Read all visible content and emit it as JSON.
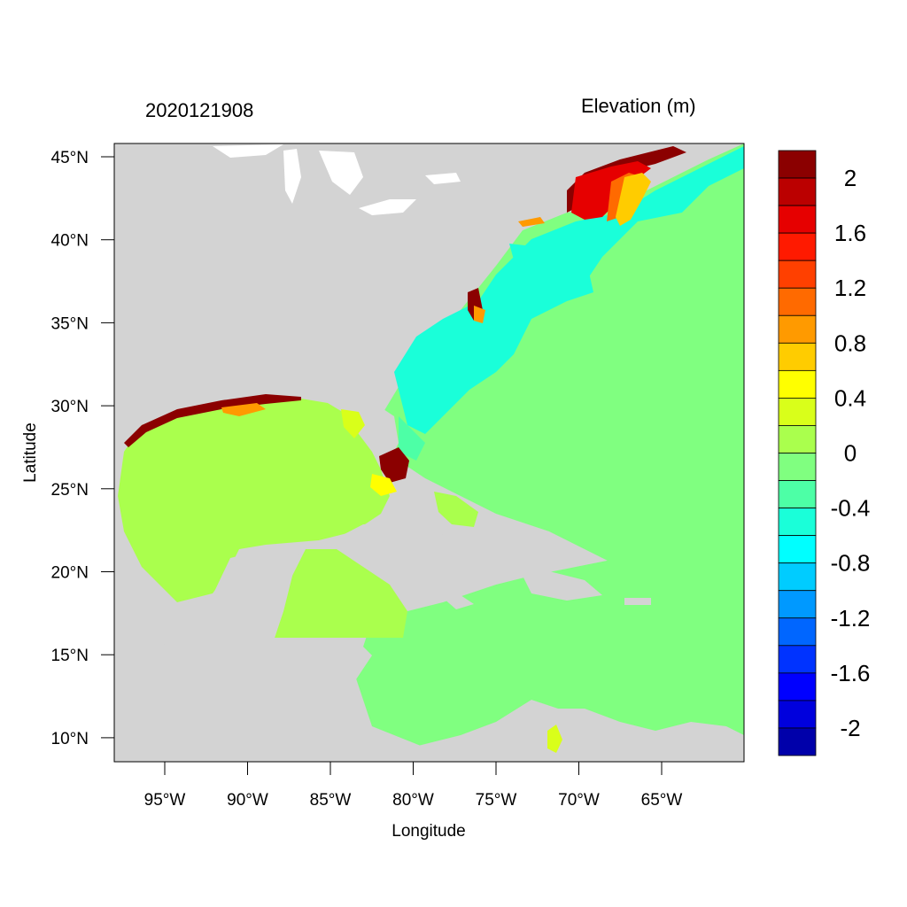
{
  "header": {
    "timestamp": "2020121908",
    "variable_title": "Elevation (m)"
  },
  "axes": {
    "xlabel": "Longitude",
    "ylabel": "Latitude",
    "x_ticks": [
      "95°W",
      "90°W",
      "85°W",
      "80°W",
      "75°W",
      "70°W",
      "65°W"
    ],
    "y_ticks": [
      "45°N",
      "40°N",
      "35°N",
      "30°N",
      "25°N",
      "20°N",
      "15°N",
      "10°N"
    ],
    "lon_range": [
      -98.2,
      -60.2
    ],
    "lat_range": [
      8.5,
      46
    ]
  },
  "colorbar": {
    "labels": [
      "2",
      "1.6",
      "1.2",
      "0.8",
      "0.4",
      "0",
      "-0.4",
      "-0.8",
      "-1.2",
      "-1.6",
      "-2"
    ],
    "colors": [
      "#8b0000",
      "#bb0000",
      "#e60000",
      "#ff1a00",
      "#ff4000",
      "#ff6a00",
      "#ff9a00",
      "#ffcc00",
      "#ffff00",
      "#d9ff1a",
      "#aaff4d",
      "#80ff80",
      "#4dffa6",
      "#1affd9",
      "#00ffff",
      "#00ccff",
      "#0099ff",
      "#0066ff",
      "#0033ff",
      "#0000ff",
      "#0000dd",
      "#0000aa"
    ]
  },
  "map_colors": {
    "land": "#d3d3d3",
    "gulf": "#aaff4d",
    "caribbean": "#80ff80",
    "atlantic_open": "#80ff80",
    "atlantic_shelf": "#1affd9",
    "surge_high": "#8b0000"
  }
}
